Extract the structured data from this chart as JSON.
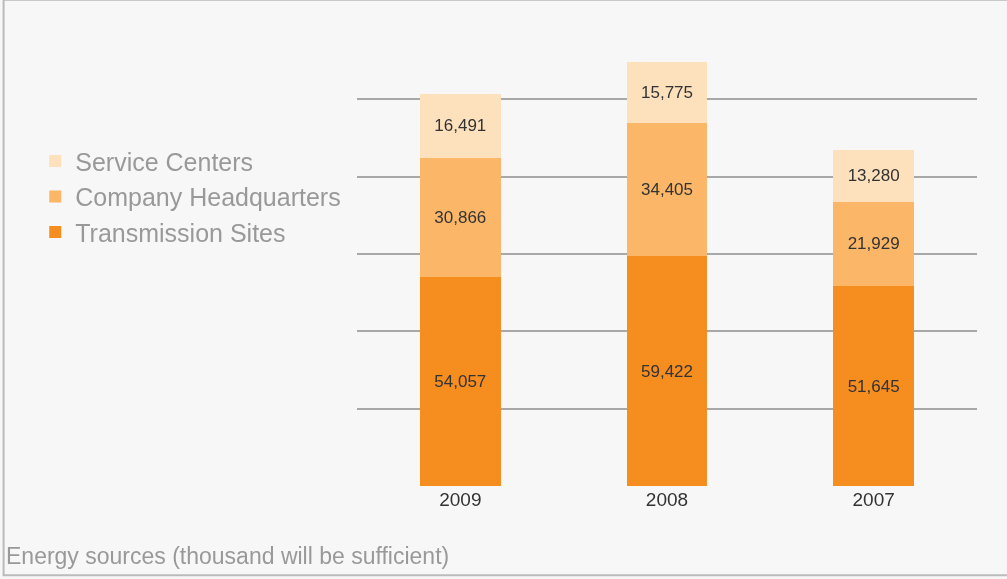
{
  "chart_data": {
    "type": "bar",
    "stacked": true,
    "categories": [
      "2009",
      "2008",
      "2007"
    ],
    "series": [
      {
        "name": "Transmission Sites",
        "color": "#f68d1f",
        "values": [
          54057,
          59422,
          51645
        ],
        "value_labels": [
          "54,057",
          "59,422",
          "51,645"
        ]
      },
      {
        "name": "Company Headquarters",
        "color": "#fbb767",
        "values": [
          30866,
          34405,
          21929
        ],
        "value_labels": [
          "30,866",
          "34,405",
          "21,929"
        ]
      },
      {
        "name": "Service Centers",
        "color": "#fde0bc",
        "values": [
          16491,
          15775,
          13280
        ],
        "value_labels": [
          "16,491",
          "15,775",
          "13,280"
        ]
      }
    ],
    "tick_labels": "x",
    "grid": "y",
    "legend": "left",
    "annotations": [
      "Energy sources (thousand will be sufficient)"
    ]
  }
}
